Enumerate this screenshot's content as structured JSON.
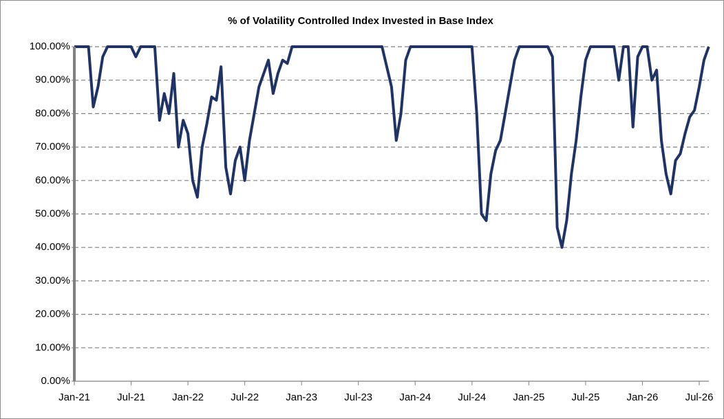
{
  "chart_data": {
    "type": "line",
    "title": "% of Volatility Controlled Index Invested in Base Index",
    "color": "#1f3464",
    "grid": true,
    "ylim": [
      0,
      100
    ],
    "yticks": [
      {
        "value": 0,
        "label": "0.00%"
      },
      {
        "value": 10,
        "label": "10.00%"
      },
      {
        "value": 20,
        "label": "20.00%"
      },
      {
        "value": 30,
        "label": "30.00%"
      },
      {
        "value": 40,
        "label": "40.00%"
      },
      {
        "value": 50,
        "label": "50.00%"
      },
      {
        "value": 60,
        "label": "60.00%"
      },
      {
        "value": 70,
        "label": "70.00%"
      },
      {
        "value": 80,
        "label": "80.00%"
      },
      {
        "value": 90,
        "label": "90.00%"
      },
      {
        "value": 100,
        "label": "100.00%"
      }
    ],
    "categories": [
      "Jan-21",
      null,
      null,
      null,
      null,
      null,
      null,
      null,
      null,
      null,
      null,
      null,
      "Jul-21",
      null,
      null,
      null,
      null,
      null,
      null,
      null,
      null,
      null,
      null,
      null,
      "Jan-22",
      null,
      null,
      null,
      null,
      null,
      null,
      null,
      null,
      null,
      null,
      null,
      "Jul-22",
      null,
      null,
      null,
      null,
      null,
      null,
      null,
      null,
      null,
      null,
      null,
      "Jan-23",
      null,
      null,
      null,
      null,
      null,
      null,
      null,
      null,
      null,
      null,
      null,
      "Jul-23",
      null,
      null,
      null,
      null,
      null,
      null,
      null,
      null,
      null,
      null,
      null,
      "Jan-24",
      null,
      null,
      null,
      null,
      null,
      null,
      null,
      null,
      null,
      null,
      null,
      "Jul-24",
      null,
      null,
      null,
      null,
      null,
      null,
      null,
      null,
      null,
      null,
      null,
      "Jan-25",
      null,
      null,
      null,
      null,
      null,
      null,
      null,
      null,
      null,
      null,
      null,
      "Jul-25",
      null,
      null,
      null,
      null,
      null,
      null,
      null,
      null,
      null,
      null,
      null,
      "Jan-26",
      null,
      null,
      null,
      null,
      null,
      null,
      null,
      null,
      null,
      null,
      null,
      "Jul-26",
      null,
      null
    ],
    "values": [
      100,
      100,
      100,
      100,
      82,
      88,
      97,
      100,
      100,
      100,
      100,
      100,
      100,
      97,
      100,
      100,
      100,
      100,
      78,
      86,
      80,
      92,
      70,
      78,
      74,
      60,
      55,
      70,
      77,
      85,
      84,
      94,
      64,
      56,
      66,
      70,
      60,
      72,
      80,
      88,
      92,
      96,
      86,
      92,
      96,
      95,
      100,
      100,
      100,
      100,
      100,
      100,
      100,
      100,
      100,
      100,
      100,
      100,
      100,
      100,
      100,
      100,
      100,
      100,
      100,
      100,
      94,
      88,
      72,
      80,
      96,
      100,
      100,
      100,
      100,
      100,
      100,
      100,
      100,
      100,
      100,
      100,
      100,
      100,
      100,
      80,
      50,
      48,
      62,
      69,
      72,
      80,
      88,
      96,
      100,
      100,
      100,
      100,
      100,
      100,
      100,
      97,
      46,
      40,
      48,
      62,
      72,
      85,
      96,
      100,
      100,
      100,
      100,
      100,
      100,
      90,
      100,
      100,
      76,
      97,
      100,
      100,
      90,
      93,
      72,
      62,
      56,
      66,
      68,
      74,
      79,
      81,
      88,
      96,
      100
    ]
  }
}
